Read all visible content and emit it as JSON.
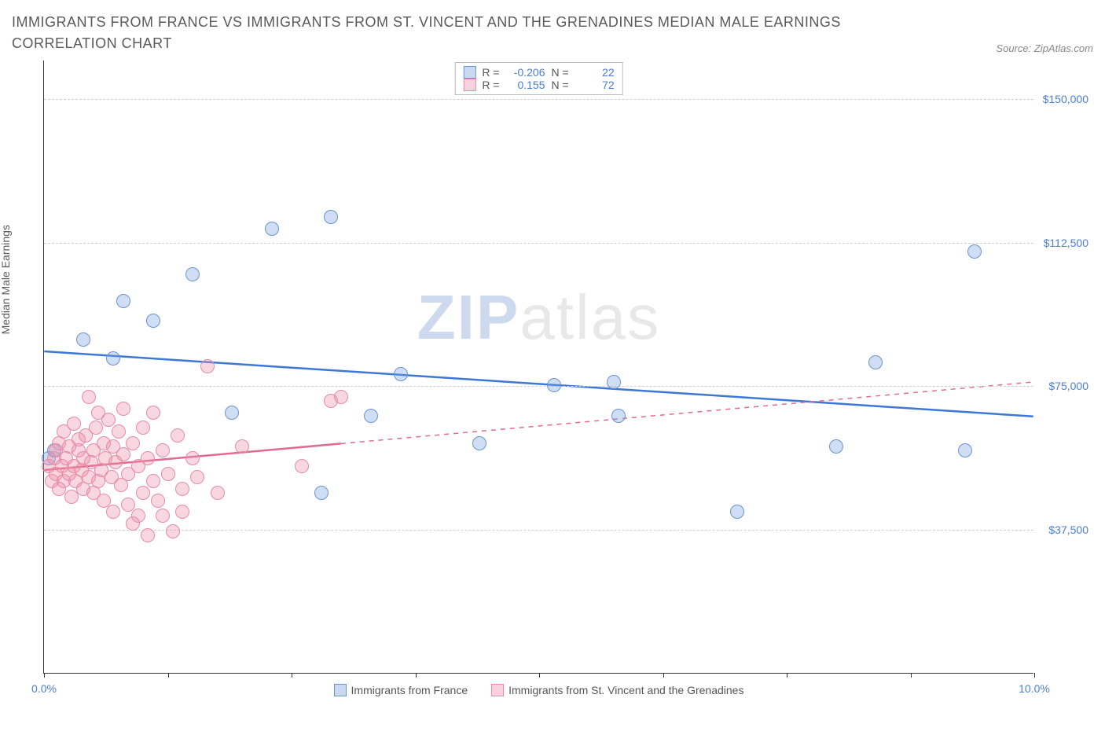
{
  "title": "IMMIGRANTS FROM FRANCE VS IMMIGRANTS FROM ST. VINCENT AND THE GRENADINES MEDIAN MALE EARNINGS CORRELATION CHART",
  "source_label": "Source:",
  "source_name": "ZipAtlas.com",
  "ylabel": "Median Male Earnings",
  "watermark_bold": "ZIP",
  "watermark_rest": "atlas",
  "xlim": [
    0,
    10
  ],
  "ylim": [
    0,
    160000
  ],
  "xtick_positions": [
    0,
    1.25,
    2.5,
    3.75,
    5.0,
    6.25,
    7.5,
    8.75,
    10.0
  ],
  "xtick_labels": {
    "0": "0.0%",
    "10": "10.0%"
  },
  "ytick_positions": [
    37500,
    75000,
    112500,
    150000
  ],
  "ytick_labels": [
    "$37,500",
    "$75,000",
    "$112,500",
    "$150,000"
  ],
  "grid_color": "#d0d0d0",
  "axis_color": "#333333",
  "label_color": "#4a7fd8",
  "series": [
    {
      "key": "france",
      "name": "Immigrants from France",
      "fill": "rgba(120,160,220,0.35)",
      "stroke": "#6a94d4",
      "reg_color": "#3d78d6",
      "dash_after_x": null,
      "R_label": "R =",
      "R": "-0.206",
      "N_label": "N =",
      "N": "22",
      "regression": {
        "x1": 0,
        "y1": 84000,
        "x2": 10,
        "y2": 67000
      },
      "marker_r": 9,
      "points": [
        [
          0.05,
          56000
        ],
        [
          0.1,
          58000
        ],
        [
          0.4,
          87000
        ],
        [
          0.7,
          82000
        ],
        [
          0.8,
          97000
        ],
        [
          1.1,
          92000
        ],
        [
          1.5,
          104000
        ],
        [
          1.9,
          68000
        ],
        [
          2.3,
          116000
        ],
        [
          2.8,
          47000
        ],
        [
          2.9,
          119000
        ],
        [
          3.3,
          67000
        ],
        [
          3.6,
          78000
        ],
        [
          4.4,
          60000
        ],
        [
          5.15,
          75000
        ],
        [
          5.75,
          76000
        ],
        [
          5.8,
          67000
        ],
        [
          7.0,
          42000
        ],
        [
          8.0,
          59000
        ],
        [
          8.4,
          81000
        ],
        [
          9.3,
          58000
        ],
        [
          9.4,
          110000
        ]
      ]
    },
    {
      "key": "stvincent",
      "name": "Immigrants from St. Vincent and the Grenadines",
      "fill": "rgba(235,140,170,0.35)",
      "stroke": "#e88aa8",
      "reg_color": "#e06a92",
      "dash_after_x": 3.0,
      "R_label": "R =",
      "R": "0.155",
      "N_label": "N =",
      "N": "72",
      "regression": {
        "x1": 0,
        "y1": 53000,
        "x2": 10,
        "y2": 76000
      },
      "marker_r": 9,
      "points": [
        [
          0.05,
          54000
        ],
        [
          0.08,
          50000
        ],
        [
          0.1,
          56000
        ],
        [
          0.12,
          58000
        ],
        [
          0.12,
          52000
        ],
        [
          0.15,
          48000
        ],
        [
          0.15,
          60000
        ],
        [
          0.18,
          54000
        ],
        [
          0.2,
          50000
        ],
        [
          0.2,
          63000
        ],
        [
          0.22,
          56000
        ],
        [
          0.25,
          52000
        ],
        [
          0.25,
          59000
        ],
        [
          0.28,
          46000
        ],
        [
          0.3,
          54000
        ],
        [
          0.3,
          65000
        ],
        [
          0.32,
          50000
        ],
        [
          0.35,
          58000
        ],
        [
          0.35,
          61000
        ],
        [
          0.38,
          53000
        ],
        [
          0.4,
          48000
        ],
        [
          0.4,
          56000
        ],
        [
          0.42,
          62000
        ],
        [
          0.45,
          51000
        ],
        [
          0.45,
          72000
        ],
        [
          0.48,
          55000
        ],
        [
          0.5,
          47000
        ],
        [
          0.5,
          58000
        ],
        [
          0.52,
          64000
        ],
        [
          0.55,
          50000
        ],
        [
          0.55,
          68000
        ],
        [
          0.58,
          53000
        ],
        [
          0.6,
          60000
        ],
        [
          0.6,
          45000
        ],
        [
          0.62,
          56000
        ],
        [
          0.65,
          66000
        ],
        [
          0.68,
          51000
        ],
        [
          0.7,
          59000
        ],
        [
          0.7,
          42000
        ],
        [
          0.72,
          55000
        ],
        [
          0.75,
          63000
        ],
        [
          0.78,
          49000
        ],
        [
          0.8,
          57000
        ],
        [
          0.8,
          69000
        ],
        [
          0.85,
          52000
        ],
        [
          0.85,
          44000
        ],
        [
          0.9,
          60000
        ],
        [
          0.9,
          39000
        ],
        [
          0.95,
          41000
        ],
        [
          0.95,
          54000
        ],
        [
          1.0,
          64000
        ],
        [
          1.0,
          47000
        ],
        [
          1.05,
          56000
        ],
        [
          1.05,
          36000
        ],
        [
          1.1,
          50000
        ],
        [
          1.1,
          68000
        ],
        [
          1.15,
          45000
        ],
        [
          1.2,
          58000
        ],
        [
          1.2,
          41000
        ],
        [
          1.25,
          52000
        ],
        [
          1.3,
          37000
        ],
        [
          1.35,
          62000
        ],
        [
          1.4,
          48000
        ],
        [
          1.4,
          42000
        ],
        [
          1.5,
          56000
        ],
        [
          1.55,
          51000
        ],
        [
          1.65,
          80000
        ],
        [
          1.75,
          47000
        ],
        [
          2.0,
          59000
        ],
        [
          2.6,
          54000
        ],
        [
          2.9,
          71000
        ],
        [
          3.0,
          72000
        ]
      ]
    }
  ],
  "legend_top_swatch_blue": {
    "fill": "rgba(120,160,220,0.4)",
    "border": "#6a94d4"
  },
  "legend_top_swatch_pink": {
    "fill": "rgba(235,140,170,0.4)",
    "border": "#e88aa8"
  }
}
